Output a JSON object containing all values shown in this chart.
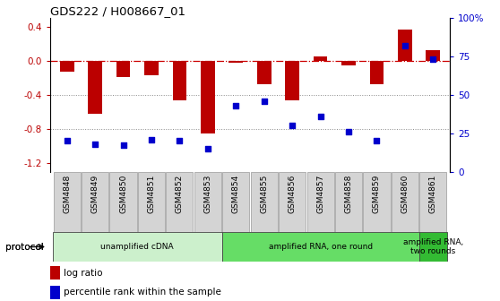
{
  "title": "GDS222 / H008667_01",
  "samples": [
    "GSM4848",
    "GSM4849",
    "GSM4850",
    "GSM4851",
    "GSM4852",
    "GSM4853",
    "GSM4854",
    "GSM4855",
    "GSM4856",
    "GSM4857",
    "GSM4858",
    "GSM4859",
    "GSM4860",
    "GSM4861"
  ],
  "log_ratio": [
    -0.13,
    -0.62,
    -0.19,
    -0.17,
    -0.46,
    -0.85,
    -0.02,
    -0.28,
    -0.46,
    0.05,
    -0.05,
    -0.28,
    0.37,
    0.12
  ],
  "percentile": [
    20,
    18,
    17,
    21,
    20,
    15,
    43,
    46,
    30,
    36,
    26,
    20,
    82,
    73
  ],
  "bar_color": "#bb0000",
  "dot_color": "#0000cc",
  "zero_line_color": "#cc0000",
  "grid_color": "#888888",
  "ylim_left": [
    -1.3,
    0.5
  ],
  "ylim_right": [
    0,
    100
  ],
  "yticks_left": [
    -1.2,
    -0.8,
    -0.4,
    0.0,
    0.4
  ],
  "yticks_right": [
    0,
    25,
    50,
    75,
    100
  ],
  "ytick_labels_right": [
    "0",
    "25",
    "50",
    "75",
    "100%"
  ],
  "protocol_groups": [
    {
      "label": "unamplified cDNA",
      "start": 0,
      "end": 5,
      "color": "#ccf0cc"
    },
    {
      "label": "amplified RNA, one round",
      "start": 6,
      "end": 12,
      "color": "#66dd66"
    },
    {
      "label": "amplified RNA,\ntwo rounds",
      "start": 13,
      "end": 13,
      "color": "#33bb33"
    }
  ],
  "legend_bar_label": "log ratio",
  "legend_dot_label": "percentile rank within the sample",
  "protocol_label": "protocol",
  "background_color": "#ffffff"
}
